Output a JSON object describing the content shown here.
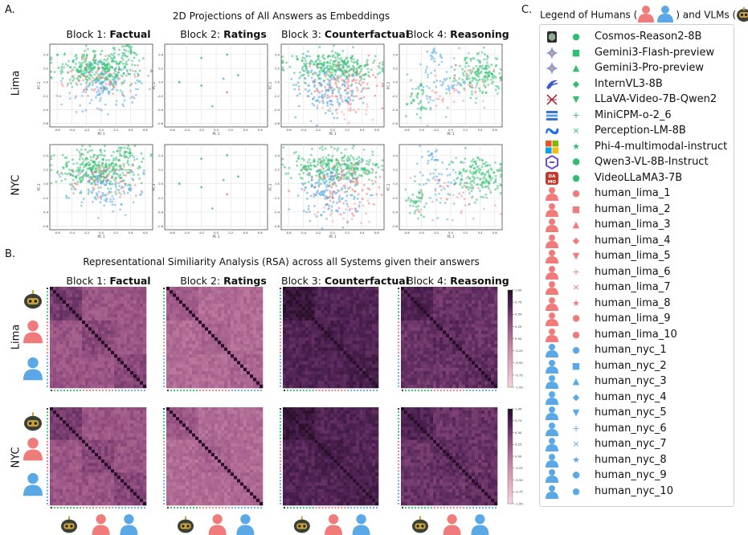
{
  "panel_labels": {
    "a": "A.",
    "b": "B.",
    "c": "C."
  },
  "section_a": {
    "title": "2D Projections of All Answers as Embeddings"
  },
  "section_b": {
    "title": "Representational Similiarity Analysis (RSA) across all Systems given their answers"
  },
  "blocks": [
    {
      "prefix": "Block 1: ",
      "name": "Factual"
    },
    {
      "prefix": "Block 2: ",
      "name": "Ratings"
    },
    {
      "prefix": "Block 3: ",
      "name": "Counterfactual"
    },
    {
      "prefix": "Block 4: ",
      "name": "Reasoning"
    }
  ],
  "rows": [
    "Lima",
    "NYC"
  ],
  "legend": {
    "title_prefix": "Legend of Humans (",
    "title_mid": ") and VLMs (",
    "title_suffix": ")",
    "items": [
      {
        "label": "Cosmos-Reason2-8B",
        "marker": "●",
        "color": "#2fbf6f",
        "icon": "cosmos-logo-icon"
      },
      {
        "label": "Gemini3-Flash-preview",
        "marker": "■",
        "color": "#2fbf6f",
        "icon": "gemini-logo-icon"
      },
      {
        "label": "Gemini3-Pro-preview",
        "marker": "▲",
        "color": "#2fbf6f",
        "icon": "gemini-logo-icon"
      },
      {
        "label": "InternVL3-8B",
        "marker": "◆",
        "color": "#2fbf6f",
        "icon": "internvl-logo-icon"
      },
      {
        "label": "LLaVA-Video-7B-Qwen2",
        "marker": "▼",
        "color": "#2fbf6f",
        "icon": "llava-logo-icon"
      },
      {
        "label": "MiniCPM-o-2_6",
        "marker": "+",
        "color": "#2fbf6f",
        "icon": "minicpm-logo-icon"
      },
      {
        "label": "Perception-LM-8B",
        "marker": "×",
        "color": "#2fbf6f",
        "icon": "meta-logo-icon"
      },
      {
        "label": "Phi-4-multimodal-instruct",
        "marker": "★",
        "color": "#2fbf6f",
        "icon": "microsoft-logo-icon"
      },
      {
        "label": "Qwen3-VL-8B-Instruct",
        "marker": "⬢",
        "color": "#2fbf6f",
        "icon": "qwen-logo-icon"
      },
      {
        "label": "VideoLLaMA3-7B",
        "marker": "●",
        "color": "#2fbf6f",
        "icon": "damo-logo-icon"
      },
      {
        "label": "human_lima_1",
        "marker": "●",
        "color": "#f07b7b",
        "icon": "human-red-icon"
      },
      {
        "label": "human_lima_2",
        "marker": "■",
        "color": "#f07b7b",
        "icon": "human-red-icon"
      },
      {
        "label": "human_lima_3",
        "marker": "▲",
        "color": "#f07b7b",
        "icon": "human-red-icon"
      },
      {
        "label": "human_lima_4",
        "marker": "◆",
        "color": "#f07b7b",
        "icon": "human-red-icon"
      },
      {
        "label": "human_lima_5",
        "marker": "▼",
        "color": "#f07b7b",
        "icon": "human-red-icon"
      },
      {
        "label": "human_lima_6",
        "marker": "+",
        "color": "#f07b7b",
        "icon": "human-red-icon"
      },
      {
        "label": "human_lima_7",
        "marker": "×",
        "color": "#f07b7b",
        "icon": "human-red-icon"
      },
      {
        "label": "human_lima_8",
        "marker": "★",
        "color": "#f07b7b",
        "icon": "human-red-icon"
      },
      {
        "label": "human_lima_9",
        "marker": "⬢",
        "color": "#f07b7b",
        "icon": "human-red-icon"
      },
      {
        "label": "human_lima_10",
        "marker": "●",
        "color": "#f07b7b",
        "icon": "human-red-icon"
      },
      {
        "label": "human_nyc_1",
        "marker": "●",
        "color": "#5aa9e6",
        "icon": "human-blue-icon"
      },
      {
        "label": "human_nyc_2",
        "marker": "■",
        "color": "#5aa9e6",
        "icon": "human-blue-icon"
      },
      {
        "label": "human_nyc_3",
        "marker": "▲",
        "color": "#5aa9e6",
        "icon": "human-blue-icon"
      },
      {
        "label": "human_nyc_4",
        "marker": "◆",
        "color": "#5aa9e6",
        "icon": "human-blue-icon"
      },
      {
        "label": "human_nyc_5",
        "marker": "▼",
        "color": "#5aa9e6",
        "icon": "human-blue-icon"
      },
      {
        "label": "human_nyc_6",
        "marker": "+",
        "color": "#5aa9e6",
        "icon": "human-blue-icon"
      },
      {
        "label": "human_nyc_7",
        "marker": "×",
        "color": "#5aa9e6",
        "icon": "human-blue-icon"
      },
      {
        "label": "human_nyc_8",
        "marker": "★",
        "color": "#5aa9e6",
        "icon": "human-blue-icon"
      },
      {
        "label": "human_nyc_9",
        "marker": "⬢",
        "color": "#5aa9e6",
        "icon": "human-blue-icon"
      },
      {
        "label": "human_nyc_10",
        "marker": "●",
        "color": "#5aa9e6",
        "icon": "human-blue-icon"
      }
    ]
  },
  "colors": {
    "vlm": "#2fbf6f",
    "lima": "#f07b7b",
    "nyc": "#5aa9e6",
    "heat_low": "#f5d6dc",
    "heat_high": "#2b112b"
  },
  "chart_data": [
    {
      "type": "scatter",
      "title": "2D Projections of All Answers as Embeddings",
      "xlabel": "PC 1",
      "ylabel": "PC 2",
      "xticks": [
        "-0.6",
        "-0.4",
        "-0.2",
        "0.0",
        "0.2",
        "0.4",
        "0.6"
      ],
      "yticks": [
        "-0.6",
        "-0.4",
        "-0.2",
        "0.0",
        "0.2",
        "0.4"
      ],
      "grid": true,
      "panels": [
        "Lima/Factual",
        "Lima/Ratings",
        "Lima/Counterfactual",
        "Lima/Reasoning",
        "NYC/Factual",
        "NYC/Ratings",
        "NYC/Counterfactual",
        "NYC/Reasoning"
      ],
      "series": [
        {
          "name": "VLMs",
          "color": "#2fbf6f"
        },
        {
          "name": "Lima",
          "color": "#f07b7b"
        },
        {
          "name": "NYC",
          "color": "#5aa9e6"
        }
      ]
    },
    {
      "type": "heatmap",
      "title": "Representational Similiarity Analysis (RSA) across all Systems given their answers",
      "colorbar_ticks": [
        "1.00",
        "0.75",
        "0.50",
        "0.25",
        "0.00",
        "-0.25",
        "-0.50",
        "-0.75",
        "-1.00"
      ],
      "colorbar_range": [
        -1,
        1
      ],
      "n_systems": 30,
      "groups": [
        {
          "name": "VLMs",
          "count": 10
        },
        {
          "name": "Lima",
          "count": 10
        },
        {
          "name": "NYC",
          "count": 10
        }
      ],
      "block_mean_similarity": {
        "Factual": 0.25,
        "Ratings": 0.05,
        "Counterfactual": 0.7,
        "Reasoning": 0.55
      }
    }
  ]
}
